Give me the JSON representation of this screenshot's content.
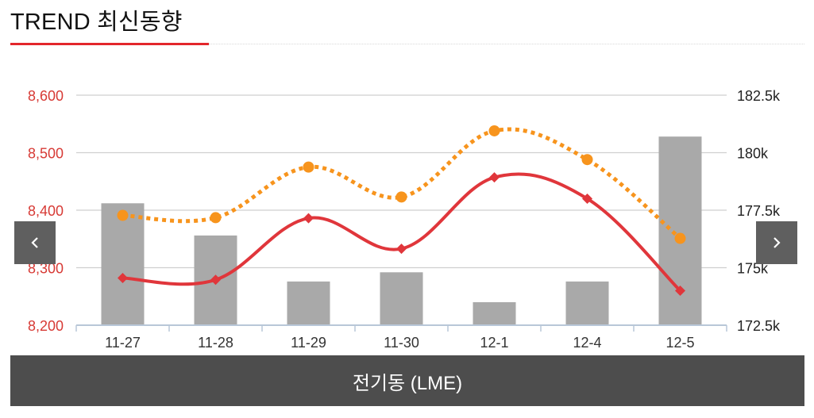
{
  "header": {
    "title": "TREND 최신동향"
  },
  "caption": "전기동 (LME)",
  "nav": {
    "prev_icon": "chevron-left-icon",
    "next_icon": "chevron-right-icon"
  },
  "colors": {
    "line_left": "#e0363b",
    "line_right": "#f7941d",
    "bars": "#a9a9a9",
    "caption_bg": "#4d4d4d",
    "nav_bg": "#5f5f5f"
  },
  "chart_data": {
    "type": "bar-line-combo",
    "categories": [
      "11-27",
      "11-28",
      "11-29",
      "11-30",
      "12-1",
      "12-4",
      "12-5"
    ],
    "y_left": {
      "ticks": [
        "8,200",
        "8,300",
        "8,400",
        "8,500",
        "8,600"
      ],
      "range": [
        8200,
        8600
      ]
    },
    "y_right": {
      "ticks": [
        "172.5k",
        "175k",
        "177.5k",
        "180k",
        "182.5k"
      ],
      "range": [
        172500,
        182500
      ]
    },
    "grid": true,
    "bars": {
      "axis": "right",
      "values": [
        177800,
        176400,
        174400,
        174800,
        173500,
        174400,
        180700
      ]
    },
    "series": [
      {
        "axis": "left",
        "style": "solid-diamond",
        "values": [
          8282,
          8279,
          8386,
          8333,
          8457,
          8420,
          8260
        ]
      },
      {
        "axis": "left",
        "style": "dotted-circle",
        "values": [
          8391,
          8387,
          8475,
          8423,
          8538,
          8488,
          8351
        ]
      }
    ]
  }
}
